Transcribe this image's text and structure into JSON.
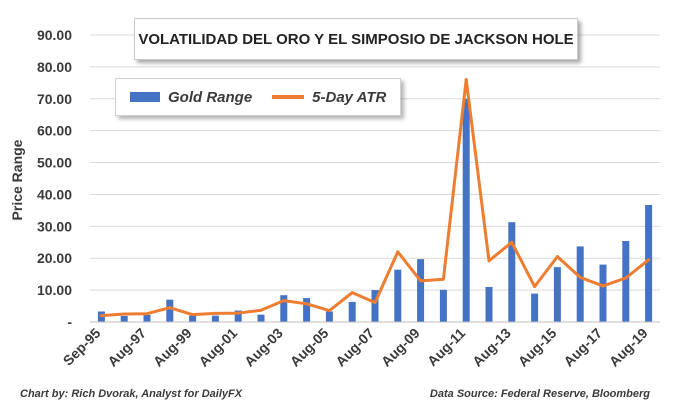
{
  "colors": {
    "bar": "#4472C4",
    "line": "#ED7D31",
    "grid": "#d9d9d9",
    "text": "#3a3a3a"
  },
  "chart_data": {
    "type": "bar",
    "title": "VOLATILIDAD DEL ORO Y EL SIMPOSIO DE JACKSON HOLE",
    "ylabel": "Price Range",
    "xlabel": "",
    "ylim": [
      0,
      90
    ],
    "yticks": [
      {
        "value": 0,
        "label": "-"
      },
      {
        "value": 10,
        "label": "10.00"
      },
      {
        "value": 20,
        "label": "20.00"
      },
      {
        "value": 30,
        "label": "30.00"
      },
      {
        "value": 40,
        "label": "40.00"
      },
      {
        "value": 50,
        "label": "50.00"
      },
      {
        "value": 60,
        "label": "60.00"
      },
      {
        "value": 70,
        "label": "70.00"
      },
      {
        "value": 80,
        "label": "80.00"
      },
      {
        "value": 90,
        "label": "90.00"
      }
    ],
    "grid": true,
    "legend_position": "top-left",
    "categories": [
      "Sep-95",
      "Aug-96",
      "Aug-97",
      "Aug-98",
      "Aug-99",
      "Aug-00",
      "Aug-01",
      "Aug-02",
      "Aug-03",
      "Aug-04",
      "Aug-05",
      "Aug-06",
      "Aug-07",
      "Aug-08",
      "Aug-09",
      "Aug-10",
      "Aug-11",
      "Aug-12",
      "Aug-13",
      "Aug-14",
      "Aug-15",
      "Aug-16",
      "Aug-17",
      "Aug-18",
      "Aug-19"
    ],
    "tick_labels": [
      "Sep-95",
      "Aug-97",
      "Aug-99",
      "Aug-01",
      "Aug-03",
      "Aug-05",
      "Aug-07",
      "Aug-09",
      "Aug-11",
      "Aug-13",
      "Aug-15",
      "Aug-17",
      "Aug-19"
    ],
    "series": [
      {
        "name": "Gold Range",
        "kind": "bar",
        "values": [
          3.3,
          1.9,
          2.2,
          7.0,
          2.0,
          2.0,
          3.6,
          2.3,
          8.4,
          7.5,
          3.3,
          6.3,
          10.0,
          16.4,
          19.7,
          10.1,
          70.0,
          11.0,
          31.3,
          8.9,
          17.2,
          23.7,
          18.0,
          25.4,
          36.7
        ]
      },
      {
        "name": "5-Day ATR",
        "kind": "line",
        "values": [
          2.0,
          2.5,
          2.6,
          4.5,
          2.3,
          2.7,
          2.8,
          3.7,
          6.7,
          5.7,
          3.6,
          9.2,
          6.1,
          22.0,
          12.9,
          13.4,
          76.0,
          19.2,
          25.0,
          11.1,
          20.5,
          14.0,
          11.3,
          13.8,
          19.5
        ]
      }
    ]
  },
  "footer": {
    "credit": "Chart by: Rich Dvorak, Analyst for DailyFX",
    "source": "Data Source: Federal Reserve, Bloomberg"
  }
}
